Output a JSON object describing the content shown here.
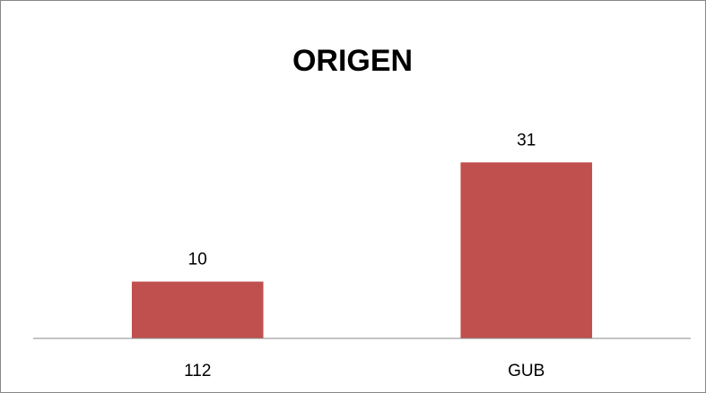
{
  "chart_data": {
    "type": "bar",
    "title": "ORIGEN",
    "categories": [
      "112",
      "GUB"
    ],
    "values": [
      10,
      31
    ],
    "color": "#c0504d",
    "ylim": [
      0,
      35
    ]
  }
}
